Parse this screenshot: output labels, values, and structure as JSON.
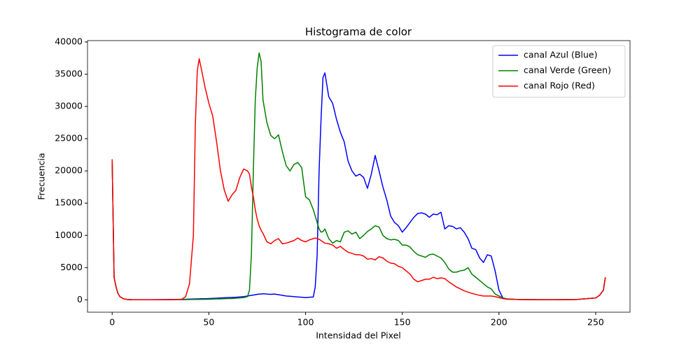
{
  "chart_data": {
    "type": "line",
    "title": "Histograma de color",
    "xlabel": "Intensidad del Pixel",
    "ylabel": "Frecuencia",
    "x": [
      0,
      1,
      2,
      3,
      4,
      6,
      8,
      10,
      20,
      30,
      36,
      38,
      40,
      42,
      43,
      44,
      45,
      46,
      48,
      50,
      52,
      54,
      56,
      58,
      60,
      62,
      64,
      66,
      68,
      70,
      71,
      72,
      73,
      74,
      75,
      76,
      77,
      78,
      80,
      82,
      84,
      86,
      88,
      90,
      92,
      94,
      96,
      98,
      100,
      102,
      104,
      105,
      106,
      107,
      108,
      109,
      110,
      112,
      114,
      116,
      118,
      120,
      122,
      124,
      126,
      128,
      130,
      132,
      134,
      136,
      138,
      140,
      142,
      144,
      146,
      148,
      150,
      152,
      154,
      156,
      158,
      160,
      162,
      164,
      166,
      168,
      170,
      172,
      174,
      176,
      178,
      180,
      182,
      184,
      186,
      188,
      190,
      192,
      194,
      196,
      198,
      200,
      202,
      204,
      210,
      220,
      230,
      240,
      250,
      252,
      254,
      255
    ],
    "series": [
      {
        "name": "canal Azul (Blue)",
        "color": "#0000ff",
        "values": [
          21800,
          3500,
          2000,
          1000,
          500,
          150,
          50,
          20,
          20,
          50,
          80,
          100,
          120,
          140,
          150,
          150,
          160,
          170,
          180,
          200,
          230,
          260,
          300,
          320,
          350,
          380,
          400,
          450,
          500,
          600,
          650,
          700,
          750,
          800,
          850,
          900,
          900,
          950,
          900,
          850,
          900,
          800,
          700,
          600,
          550,
          500,
          450,
          400,
          350,
          400,
          450,
          2000,
          7000,
          20000,
          28000,
          34500,
          35200,
          31500,
          30500,
          28000,
          26000,
          24500,
          21500,
          20000,
          19200,
          19500,
          19000,
          17300,
          19500,
          22400,
          20000,
          17500,
          15500,
          13000,
          12000,
          11500,
          10500,
          11200,
          12000,
          12800,
          13400,
          13500,
          13300,
          12800,
          13300,
          13200,
          13600,
          11000,
          11500,
          11400,
          11000,
          11200,
          10500,
          9500,
          8000,
          7800,
          6500,
          5800,
          7000,
          6800,
          4500,
          1500,
          300,
          150,
          50,
          30,
          20,
          50,
          300,
          700,
          1500,
          3500
        ]
      },
      {
        "name": "canal Verde (Green)",
        "color": "#008000",
        "values": [
          21800,
          3500,
          2000,
          1000,
          500,
          150,
          50,
          20,
          10,
          20,
          30,
          40,
          50,
          60,
          60,
          70,
          70,
          80,
          80,
          100,
          120,
          150,
          150,
          180,
          200,
          200,
          250,
          300,
          350,
          500,
          1500,
          7000,
          20000,
          31000,
          36000,
          38300,
          37000,
          31000,
          27500,
          25500,
          25000,
          25600,
          23000,
          20800,
          20000,
          21000,
          21300,
          20500,
          16000,
          15500,
          14000,
          13000,
          12000,
          11000,
          10500,
          10600,
          11000,
          9500,
          8800,
          9200,
          9000,
          10500,
          10700,
          10200,
          10500,
          9500,
          10000,
          10600,
          11000,
          11500,
          11300,
          10000,
          9500,
          9300,
          9400,
          9200,
          8500,
          8500,
          8200,
          7500,
          7000,
          6800,
          6600,
          7000,
          7100,
          6800,
          6500,
          5800,
          4800,
          4300,
          4300,
          4500,
          4600,
          5000,
          4000,
          3500,
          3000,
          2500,
          2000,
          1700,
          900,
          600,
          300,
          150,
          50,
          30,
          20,
          50,
          300,
          700,
          1500,
          3500
        ]
      },
      {
        "name": "canal Rojo (Red)",
        "color": "#ff0000",
        "values": [
          21800,
          3500,
          2000,
          1000,
          500,
          150,
          50,
          20,
          10,
          10,
          100,
          500,
          2500,
          10000,
          27000,
          35500,
          37400,
          36000,
          33000,
          30500,
          28500,
          24500,
          20000,
          17000,
          15300,
          16300,
          17000,
          19000,
          20300,
          20000,
          19500,
          17500,
          16000,
          14000,
          12500,
          11500,
          10800,
          10300,
          9000,
          8700,
          9200,
          9500,
          8700,
          8800,
          9000,
          9200,
          9600,
          9200,
          9000,
          9300,
          9500,
          9600,
          9500,
          9400,
          9200,
          9000,
          8800,
          8700,
          8500,
          8000,
          8300,
          7800,
          7400,
          7200,
          7000,
          7000,
          6800,
          6300,
          6400,
          6200,
          6700,
          6500,
          6000,
          5700,
          5600,
          5200,
          5000,
          4500,
          4000,
          3200,
          2800,
          3000,
          3200,
          3200,
          3500,
          3300,
          3400,
          3300,
          2800,
          2400,
          2000,
          1700,
          1400,
          1200,
          1000,
          850,
          700,
          600,
          600,
          600,
          500,
          350,
          200,
          100,
          50,
          30,
          20,
          50,
          300,
          700,
          1500,
          3500
        ]
      }
    ],
    "xlim": [
      -12.75,
      267.75
    ],
    "xticks": [
      0,
      50,
      100,
      150,
      200,
      250
    ],
    "ylim": [
      -1915,
      40215
    ],
    "yticks": [
      0,
      5000,
      10000,
      15000,
      20000,
      25000,
      30000,
      35000,
      40000
    ],
    "legend": "upper right"
  }
}
